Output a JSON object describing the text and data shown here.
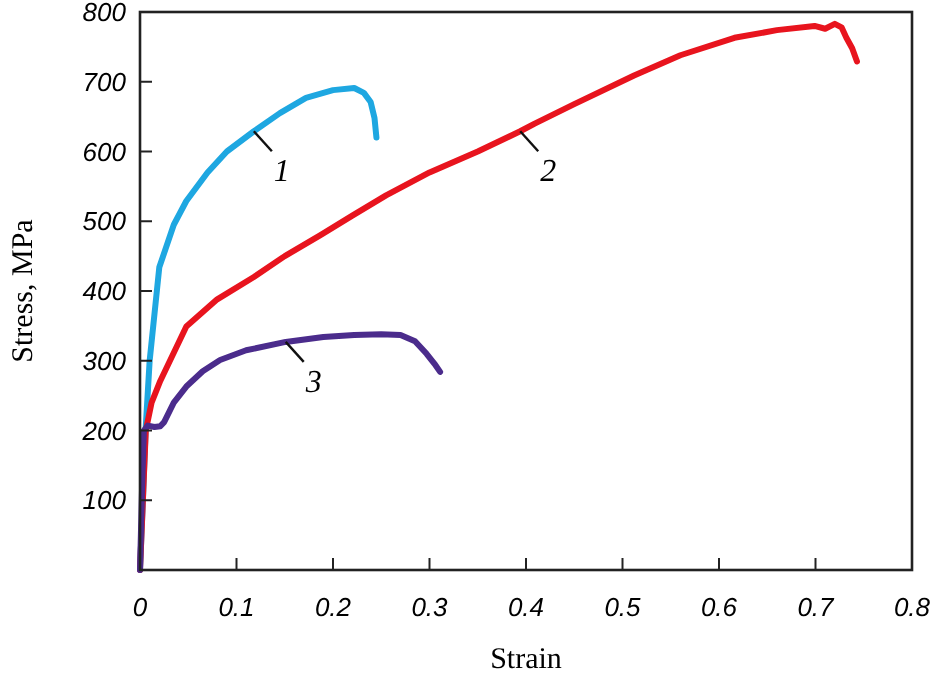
{
  "chart_data": {
    "type": "line",
    "xlabel": "Strain",
    "ylabel": "Stress, MPa",
    "xlim": [
      0,
      0.8
    ],
    "ylim": [
      0,
      800
    ],
    "xticks": [
      0,
      0.1,
      0.2,
      0.3,
      0.4,
      0.5,
      0.6,
      0.7,
      0.8
    ],
    "yticks": [
      {
        "value": 0,
        "label": null
      },
      100,
      200,
      300,
      400,
      500,
      600,
      700,
      800
    ],
    "grid": false,
    "marker": "none",
    "line_style": "solid",
    "series": [
      {
        "color": "#1ea7e1",
        "x": [
          0,
          0.003,
          0.006,
          0.01,
          0.02,
          0.035,
          0.048,
          0.07,
          0.09,
          0.118,
          0.145,
          0.172,
          0.2,
          0.222,
          0.232,
          0.239,
          0.243,
          0.245
        ],
        "values": [
          0,
          100,
          206,
          300,
          434,
          495,
          529,
          570,
          600,
          629,
          655,
          677,
          688,
          691,
          684,
          671,
          648,
          620
        ]
      },
      {
        "color": "#e8141e",
        "x": [
          0,
          0.003,
          0.006,
          0.012,
          0.021,
          0.048,
          0.08,
          0.118,
          0.15,
          0.187,
          0.22,
          0.255,
          0.3,
          0.35,
          0.394,
          0.409,
          0.45,
          0.512,
          0.56,
          0.616,
          0.66,
          0.699,
          0.71,
          0.72,
          0.727,
          0.732,
          0.738,
          0.743
        ],
        "values": [
          0,
          100,
          200,
          240,
          271,
          349,
          388,
          420,
          450,
          480,
          508,
          537,
          570,
          600,
          629,
          640,
          668,
          709,
          738,
          763,
          774,
          780,
          776,
          783,
          778,
          763,
          748,
          729
        ]
      },
      {
        "color": "#4b2c8c",
        "x": [
          0,
          0.002,
          0.004,
          0.008,
          0.015,
          0.021,
          0.025,
          0.035,
          0.048,
          0.065,
          0.083,
          0.11,
          0.151,
          0.19,
          0.222,
          0.25,
          0.27,
          0.285,
          0.297,
          0.305,
          0.311
        ],
        "values": [
          0,
          110,
          200,
          207,
          205,
          206,
          212,
          240,
          263,
          285,
          301,
          315,
          327,
          334,
          337,
          338,
          337,
          328,
          310,
          296,
          284
        ]
      }
    ],
    "annotations": [
      {
        "text": "1",
        "x": 0.118,
        "y": 629
      },
      {
        "text": "2",
        "x": 0.394,
        "y": 629
      },
      {
        "text": "3",
        "x": 0.151,
        "y": 327
      }
    ]
  }
}
